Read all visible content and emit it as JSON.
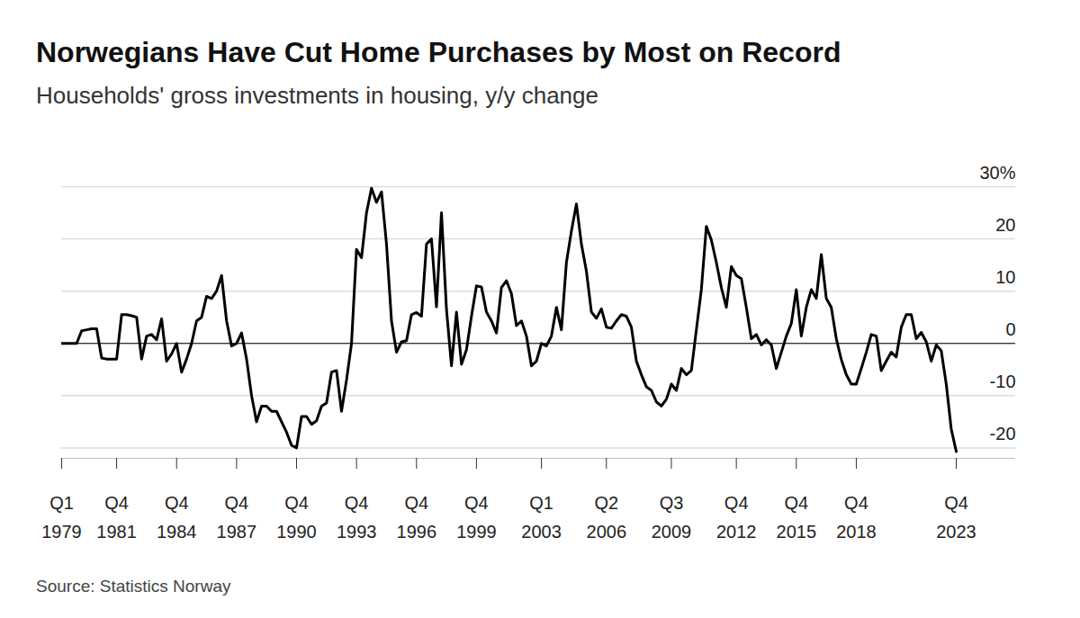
{
  "chart_data": {
    "type": "line",
    "title": "Norwegians Have Cut Home Purchases by Most on Record",
    "subtitle": "Households' gross investments in housing, y/y change",
    "source": "Source: Statistics Norway",
    "color": "#000000",
    "grid": true,
    "ylim": [
      -22,
      30
    ],
    "yticks": [
      -20,
      -10,
      0,
      10,
      20,
      {
        "value": 30,
        "label": "30%"
      }
    ],
    "categories": [
      "Q1\n1979",
      null,
      null,
      null,
      null,
      null,
      null,
      null,
      null,
      null,
      null,
      "Q4\n1981",
      null,
      null,
      null,
      null,
      null,
      null,
      null,
      null,
      null,
      null,
      null,
      "Q4\n1984",
      null,
      null,
      null,
      null,
      null,
      null,
      null,
      null,
      null,
      null,
      null,
      "Q4\n1987",
      null,
      null,
      null,
      null,
      null,
      null,
      null,
      null,
      null,
      null,
      null,
      "Q4\n1990",
      null,
      null,
      null,
      null,
      null,
      null,
      null,
      null,
      null,
      null,
      null,
      "Q4\n1993",
      null,
      null,
      null,
      null,
      null,
      null,
      null,
      null,
      null,
      null,
      null,
      "Q4\n1996",
      null,
      null,
      null,
      null,
      null,
      null,
      null,
      null,
      null,
      null,
      null,
      "Q4\n1999",
      null,
      null,
      null,
      null,
      null,
      null,
      null,
      null,
      null,
      null,
      null,
      null,
      "Q1\n2003",
      null,
      null,
      null,
      null,
      null,
      null,
      null,
      null,
      null,
      null,
      null,
      null,
      "Q2\n2006",
      null,
      null,
      null,
      null,
      null,
      null,
      null,
      null,
      null,
      null,
      null,
      null,
      "Q3\n2009",
      null,
      null,
      null,
      null,
      null,
      null,
      null,
      null,
      null,
      null,
      null,
      null,
      "Q4\n2012",
      null,
      null,
      null,
      null,
      null,
      null,
      null,
      null,
      null,
      null,
      null,
      "Q4\n2015",
      null,
      null,
      null,
      null,
      null,
      null,
      null,
      null,
      null,
      null,
      null,
      "Q4\n2018",
      null,
      null,
      null,
      null,
      null,
      null,
      null,
      null,
      null,
      null,
      null,
      null,
      null,
      null,
      null,
      null,
      null,
      null,
      null,
      "Q4\n2023"
    ],
    "values": [
      0,
      0,
      0,
      0,
      2.4,
      2.6,
      2.8,
      2.8,
      -2.8,
      -3,
      -3,
      -3,
      5.5,
      5.5,
      5.3,
      5,
      -3,
      1.4,
      1.7,
      0.7,
      4.7,
      -3.4,
      -2,
      0,
      -5.5,
      -3,
      0,
      4.3,
      5,
      9,
      8.6,
      10,
      13,
      4.3,
      -0.5,
      0,
      2,
      -3,
      -10,
      -15,
      -12,
      -12,
      -13,
      -13,
      -15,
      -17,
      -19.5,
      -20,
      -14,
      -14,
      -15.5,
      -14.8,
      -12,
      -11.4,
      -5.5,
      -5.2,
      -13,
      -7,
      0,
      18,
      16.4,
      25,
      29.7,
      27,
      29,
      19,
      4.3,
      -1.7,
      0.3,
      0.5,
      5.5,
      5.9,
      5.2,
      19,
      20,
      7,
      25,
      6.5,
      -4.3,
      6,
      -4,
      -1.2,
      5.2,
      11,
      10.8,
      6,
      4.3,
      2,
      10.7,
      12,
      9.5,
      3.4,
      4.3,
      1.4,
      -4.3,
      -3.4,
      0,
      -0.5,
      1.4,
      6.9,
      2.6,
      15.5,
      21.5,
      26.7,
      19,
      13.8,
      6,
      4.8,
      6.6,
      3.1,
      2.9,
      4.3,
      5.5,
      5.2,
      3.1,
      -3.4,
      -6,
      -8.3,
      -9,
      -11.2,
      -12,
      -10.7,
      -7.8,
      -9,
      -4.8,
      -6,
      -5.2,
      2.6,
      10.3,
      22.4,
      19.8,
      15.5,
      10.7,
      6.9,
      14.7,
      13,
      12.4,
      6.9,
      0.9,
      1.7,
      -0.3,
      0.7,
      -0.3,
      -4.8,
      -1.7,
      1.4,
      3.8,
      10.3,
      1.4,
      6.9,
      10.3,
      8.6,
      17,
      8.6,
      6.9,
      0.9,
      -3.1,
      -6,
      -7.8,
      -7.8,
      -4.8,
      -1.7,
      1.7,
      1.4,
      -5.2,
      -3.4,
      -1.7,
      -2.6,
      3.1,
      5.5,
      5.5,
      0.9,
      2.1,
      0.3,
      -3.4,
      -0.3,
      -1.4,
      -7.8,
      -16.4,
      -20.7
    ]
  }
}
